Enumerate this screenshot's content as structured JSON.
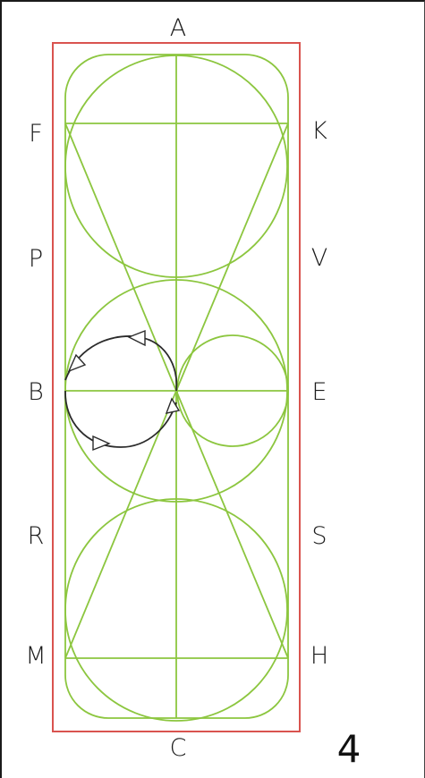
{
  "arena": {
    "letters": {
      "top": "A",
      "bottom": "C",
      "left": [
        "F",
        "P",
        "B",
        "R",
        "M"
      ],
      "right": [
        "K",
        "V",
        "E",
        "S",
        "H"
      ]
    },
    "page_number": "4"
  },
  "colors": {
    "arena_border": "#d9534f",
    "pattern_lines": "#8cc63f",
    "path_arrows": "#2b2b2b"
  }
}
